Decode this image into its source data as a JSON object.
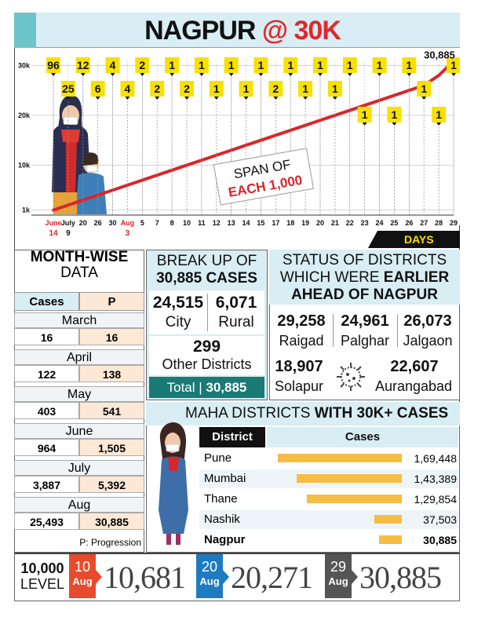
{
  "header": {
    "title_part1": "NAGPUR ",
    "title_part2": "@ 30K"
  },
  "chart_data": {
    "type": "line",
    "title": "NAGPUR @ 30K",
    "xlabel": "DAYS",
    "ylabel": "",
    "y_ticks": [
      "1k",
      "10k",
      "20k",
      "30k"
    ],
    "ylim": [
      0,
      31000
    ],
    "x_tick_labels": [
      {
        "l1": "June",
        "l2": "14",
        "red": true
      },
      {
        "l1": "July",
        "l2": "9",
        "red": false
      },
      {
        "l1": "20",
        "l2": "",
        "red": false
      },
      {
        "l1": "26",
        "l2": "",
        "red": false
      },
      {
        "l1": "30",
        "l2": "",
        "red": false
      },
      {
        "l1": "Aug",
        "l2": "3",
        "red": true
      },
      {
        "l1": "5",
        "l2": "",
        "red": false
      },
      {
        "l1": "7",
        "l2": "",
        "red": false
      },
      {
        "l1": "8",
        "l2": "",
        "red": false
      },
      {
        "l1": "10",
        "l2": "",
        "red": false
      },
      {
        "l1": "11",
        "l2": "",
        "red": false
      },
      {
        "l1": "12",
        "l2": "",
        "red": false
      },
      {
        "l1": "13",
        "l2": "",
        "red": false
      },
      {
        "l1": "14",
        "l2": "",
        "red": false
      },
      {
        "l1": "15",
        "l2": "",
        "red": false
      },
      {
        "l1": "17",
        "l2": "",
        "red": false
      },
      {
        "l1": "18",
        "l2": "",
        "red": false
      },
      {
        "l1": "19",
        "l2": "",
        "red": false
      },
      {
        "l1": "20",
        "l2": "",
        "red": false
      },
      {
        "l1": "21",
        "l2": "",
        "red": false
      },
      {
        "l1": "22",
        "l2": "",
        "red": false
      },
      {
        "l1": "23",
        "l2": "",
        "red": false
      },
      {
        "l1": "24",
        "l2": "",
        "red": false
      },
      {
        "l1": "25",
        "l2": "",
        "red": false
      },
      {
        "l1": "26",
        "l2": "",
        "red": false
      },
      {
        "l1": "27",
        "l2": "",
        "red": false
      },
      {
        "l1": "28",
        "l2": "",
        "red": false
      },
      {
        "l1": "29",
        "l2": "",
        "red": false
      }
    ],
    "series": [
      {
        "values": [
          1000,
          2000,
          3000,
          4000,
          5000,
          6000,
          7000,
          8000,
          9000,
          10000,
          11000,
          12000,
          13000,
          14000,
          15000,
          16000,
          17000,
          18000,
          19000,
          20000,
          21000,
          22000,
          23000,
          24000,
          25000,
          26000,
          28000,
          30885
        ]
      }
    ],
    "days_to_add_1000": [
      {
        "label": "96",
        "row": "top"
      },
      {
        "label": "25",
        "row": "mid"
      },
      {
        "label": "12",
        "row": "top"
      },
      {
        "label": "6",
        "row": "mid"
      },
      {
        "label": "4",
        "row": "top"
      },
      {
        "label": "4",
        "row": "mid"
      },
      {
        "label": "2",
        "row": "top"
      },
      {
        "label": "2",
        "row": "mid"
      },
      {
        "label": "1",
        "row": "top"
      },
      {
        "label": "2",
        "row": "mid"
      },
      {
        "label": "1",
        "row": "top"
      },
      {
        "label": "1",
        "row": "mid"
      },
      {
        "label": "1",
        "row": "top"
      },
      {
        "label": "1",
        "row": "mid"
      },
      {
        "label": "1",
        "row": "top"
      },
      {
        "label": "2",
        "row": "mid"
      },
      {
        "label": "1",
        "row": "top"
      },
      {
        "label": "1",
        "row": "mid"
      },
      {
        "label": "1",
        "row": "top"
      },
      {
        "label": "1",
        "row": "mid"
      },
      {
        "label": "1",
        "row": "top"
      },
      {
        "label": "1",
        "row": "low"
      },
      {
        "label": "1",
        "row": "top"
      },
      {
        "label": "1",
        "row": "low"
      },
      {
        "label": "1",
        "row": "top"
      },
      {
        "label": "1",
        "row": "mid"
      },
      {
        "label": "1",
        "row": "low"
      },
      {
        "label": "1",
        "row": "top"
      }
    ],
    "end_label": "30,885",
    "annotation_line1": "SPAN OF",
    "annotation_line2": "EACH 1,000",
    "colors": {
      "line": "#d8262b",
      "marker": "#f7e100",
      "grid": "#bbbbbb"
    }
  },
  "month_wise": {
    "title_bold": "MONTH-WISE",
    "title_normal": "DATA",
    "col_cases": "Cases",
    "col_p": "P",
    "rows": [
      {
        "month": "March",
        "cases": "16",
        "p": "16"
      },
      {
        "month": "April",
        "cases": "122",
        "p": "138"
      },
      {
        "month": "May",
        "cases": "403",
        "p": "541"
      },
      {
        "month": "June",
        "cases": "964",
        "p": "1,505"
      },
      {
        "month": "July",
        "cases": "3,887",
        "p": "5,392"
      },
      {
        "month": "Aug",
        "cases": "25,493",
        "p": "30,885"
      }
    ],
    "note": "P: Progression"
  },
  "breakup": {
    "title_line1": "BREAK UP OF",
    "title_line2": "30,885 CASES",
    "city_value": "24,515",
    "city_label": "City",
    "rural_value": "6,071",
    "rural_label": "Rural",
    "other_value": "299",
    "other_label": "Other Districts",
    "total_label": "Total | ",
    "total_value": "30,885"
  },
  "status": {
    "title_line1": "STATUS OF DISTRICTS",
    "title_line2a": "WHICH WERE ",
    "title_line2b": "EARLIER",
    "title_line3": "AHEAD OF NAGPUR",
    "districts": [
      {
        "value": "29,258",
        "name": "Raigad"
      },
      {
        "value": "24,961",
        "name": "Palghar"
      },
      {
        "value": "26,073",
        "name": "Jalgaon"
      },
      {
        "value": "18,907",
        "name": "Solapur"
      },
      {
        "value": "22,607",
        "name": "Aurangabad"
      }
    ]
  },
  "maha": {
    "title_normal": "MAHA DISTRICTS ",
    "title_bold": "WITH 30K+ CASES",
    "col_district": "District",
    "col_cases": "Cases",
    "rows": [
      {
        "name": "Pune",
        "cases": "1,69,448",
        "value": 169448
      },
      {
        "name": "Mumbai",
        "cases": "1,43,389",
        "value": 143389
      },
      {
        "name": "Thane",
        "cases": "1,29,854",
        "value": 129854
      },
      {
        "name": "Nashik",
        "cases": "37,503",
        "value": 37503
      },
      {
        "name": "Nagpur",
        "cases": "30,885",
        "value": 30885
      }
    ]
  },
  "level": {
    "label_line1": "10,000",
    "label_line2": "LEVEL",
    "items": [
      {
        "day": "10",
        "month": "Aug",
        "value": "10,681",
        "color": "#e84a2e"
      },
      {
        "day": "20",
        "month": "Aug",
        "value": "20,271",
        "color": "#1e7bc0"
      },
      {
        "day": "29",
        "month": "Aug",
        "value": "30,885",
        "color": "#555555"
      }
    ]
  }
}
